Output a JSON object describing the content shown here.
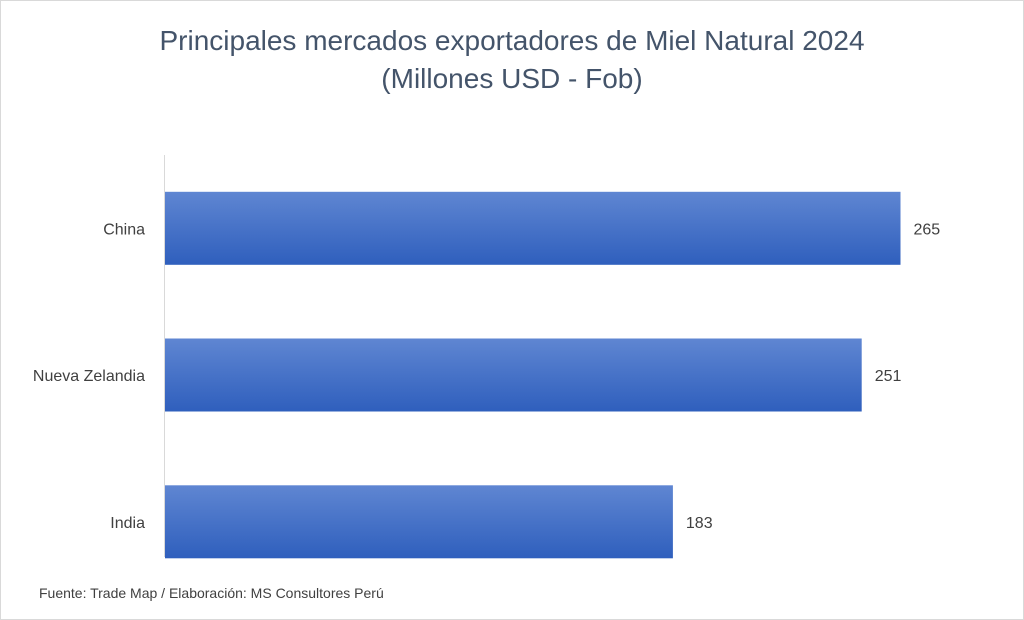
{
  "chart_data": {
    "type": "bar",
    "orientation": "horizontal",
    "title": "Principales mercados exportadores de Miel Natural 2024",
    "subtitle": "(Millones USD - Fob)",
    "categories": [
      "China",
      "Nueva Zelandia",
      "India"
    ],
    "values": [
      265,
      251,
      183
    ],
    "data_labels": [
      "265",
      "251",
      "183"
    ],
    "xlim": [
      0,
      300
    ],
    "grid": false,
    "legend": "none",
    "bar_color": "#4472c4"
  },
  "footer": {
    "source": "Fuente: Trade Map / Elaboración: MS Consultores Perú"
  }
}
